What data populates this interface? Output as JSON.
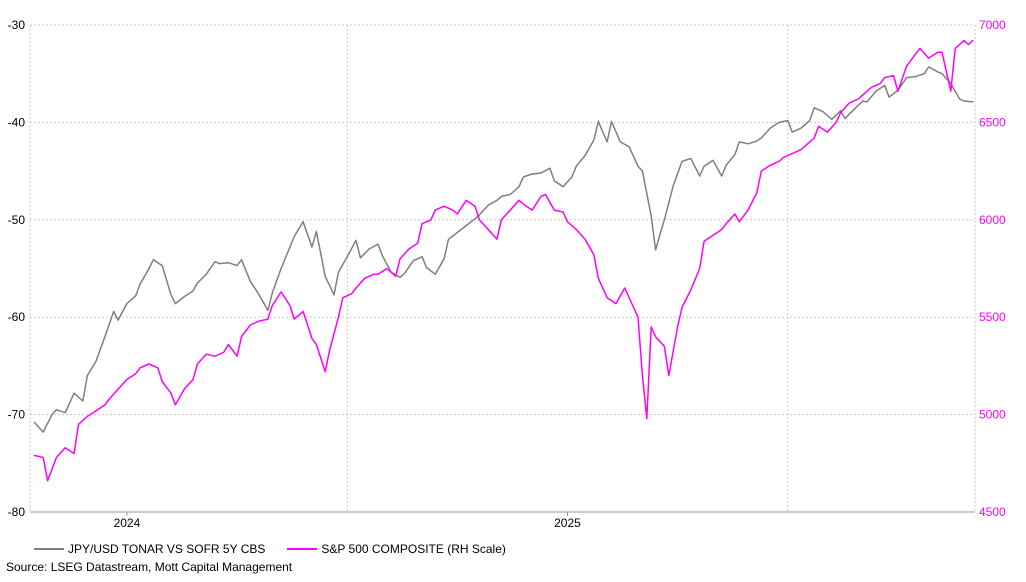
{
  "chart_data": {
    "type": "line",
    "title": "",
    "xlabel": "",
    "x_tick_labels": [
      "2024",
      "2025"
    ],
    "left_axis": {
      "ylim": [
        -80,
        -30
      ],
      "ticks": [
        -30,
        -40,
        -50,
        -60,
        -70,
        -80
      ]
    },
    "right_axis": {
      "ylim": [
        4500,
        7000
      ],
      "ticks": [
        7000,
        6500,
        6000,
        5500,
        5000,
        4500
      ]
    },
    "grid": true,
    "legend_position": "bottom-left",
    "series": [
      {
        "name": "JPY/USD TONAR VS SOFR 5Y CBS",
        "axis": "left",
        "color": "#7f7f7f",
        "points": [
          [
            2023.79,
            -70.8
          ],
          [
            2023.81,
            -71.8
          ],
          [
            2023.83,
            -70.0
          ],
          [
            2023.84,
            -69.5
          ],
          [
            2023.86,
            -69.8
          ],
          [
            2023.88,
            -67.8
          ],
          [
            2023.9,
            -68.6
          ],
          [
            2023.91,
            -66.0
          ],
          [
            2023.93,
            -64.5
          ],
          [
            2023.95,
            -62.0
          ],
          [
            2023.97,
            -59.4
          ],
          [
            2023.98,
            -60.3
          ],
          [
            2024.0,
            -58.6
          ],
          [
            2024.02,
            -57.8
          ],
          [
            2024.03,
            -56.6
          ],
          [
            2024.05,
            -55.0
          ],
          [
            2024.06,
            -54.1
          ],
          [
            2024.08,
            -54.7
          ],
          [
            2024.1,
            -57.7
          ],
          [
            2024.11,
            -58.6
          ],
          [
            2024.13,
            -57.9
          ],
          [
            2024.15,
            -57.3
          ],
          [
            2024.16,
            -56.5
          ],
          [
            2024.18,
            -55.6
          ],
          [
            2024.2,
            -54.3
          ],
          [
            2024.21,
            -54.5
          ],
          [
            2024.23,
            -54.4
          ],
          [
            2024.25,
            -54.7
          ],
          [
            2024.26,
            -54.1
          ],
          [
            2024.28,
            -56.3
          ],
          [
            2024.3,
            -57.7
          ],
          [
            2024.32,
            -59.3
          ],
          [
            2024.33,
            -57.5
          ],
          [
            2024.35,
            -55.0
          ],
          [
            2024.37,
            -52.8
          ],
          [
            2024.38,
            -51.7
          ],
          [
            2024.4,
            -50.2
          ],
          [
            2024.42,
            -52.8
          ],
          [
            2024.43,
            -51.2
          ],
          [
            2024.45,
            -55.8
          ],
          [
            2024.47,
            -57.7
          ],
          [
            2024.48,
            -55.4
          ],
          [
            2024.5,
            -53.8
          ],
          [
            2024.52,
            -52.1
          ],
          [
            2024.53,
            -53.9
          ],
          [
            2024.55,
            -53.0
          ],
          [
            2024.57,
            -52.5
          ],
          [
            2024.58,
            -53.7
          ],
          [
            2024.6,
            -55.4
          ],
          [
            2024.62,
            -55.9
          ],
          [
            2024.63,
            -55.5
          ],
          [
            2024.65,
            -54.2
          ],
          [
            2024.67,
            -53.8
          ],
          [
            2024.68,
            -54.9
          ],
          [
            2024.7,
            -55.6
          ],
          [
            2024.72,
            -54.0
          ],
          [
            2024.73,
            -52.0
          ],
          [
            2024.75,
            -51.3
          ],
          [
            2024.77,
            -50.6
          ],
          [
            2024.79,
            -49.9
          ],
          [
            2024.8,
            -49.5
          ],
          [
            2024.82,
            -48.5
          ],
          [
            2024.84,
            -48.0
          ],
          [
            2024.85,
            -47.6
          ],
          [
            2024.87,
            -47.4
          ],
          [
            2024.89,
            -46.6
          ],
          [
            2024.9,
            -45.6
          ],
          [
            2024.92,
            -45.3
          ],
          [
            2024.94,
            -45.2
          ],
          [
            2024.96,
            -44.7
          ],
          [
            2024.97,
            -46.0
          ],
          [
            2024.99,
            -46.6
          ],
          [
            2025.01,
            -45.6
          ],
          [
            2025.02,
            -44.5
          ],
          [
            2025.04,
            -43.4
          ],
          [
            2025.06,
            -41.8
          ],
          [
            2025.07,
            -39.9
          ],
          [
            2025.09,
            -42.0
          ],
          [
            2025.1,
            -39.9
          ],
          [
            2025.12,
            -42.0
          ],
          [
            2025.14,
            -42.5
          ],
          [
            2025.16,
            -44.5
          ],
          [
            2025.17,
            -45.0
          ],
          [
            2025.19,
            -49.6
          ],
          [
            2025.2,
            -53.1
          ],
          [
            2025.21,
            -51.5
          ],
          [
            2025.22,
            -50.0
          ],
          [
            2025.24,
            -46.5
          ],
          [
            2025.26,
            -44.0
          ],
          [
            2025.28,
            -43.7
          ],
          [
            2025.3,
            -45.5
          ],
          [
            2025.31,
            -44.5
          ],
          [
            2025.33,
            -43.9
          ],
          [
            2025.35,
            -45.5
          ],
          [
            2025.36,
            -44.4
          ],
          [
            2025.38,
            -43.3
          ],
          [
            2025.39,
            -42.0
          ],
          [
            2025.41,
            -42.2
          ],
          [
            2025.43,
            -41.9
          ],
          [
            2025.44,
            -41.6
          ],
          [
            2025.46,
            -40.6
          ],
          [
            2025.48,
            -40.0
          ],
          [
            2025.5,
            -39.8
          ],
          [
            2025.51,
            -41.0
          ],
          [
            2025.53,
            -40.6
          ],
          [
            2025.55,
            -39.8
          ],
          [
            2025.56,
            -38.5
          ],
          [
            2025.58,
            -38.9
          ],
          [
            2025.6,
            -39.7
          ],
          [
            2025.62,
            -38.8
          ],
          [
            2025.63,
            -39.6
          ],
          [
            2025.65,
            -38.7
          ],
          [
            2025.67,
            -37.8
          ],
          [
            2025.68,
            -37.9
          ],
          [
            2025.7,
            -36.8
          ],
          [
            2025.72,
            -36.2
          ],
          [
            2025.73,
            -37.4
          ],
          [
            2025.75,
            -36.7
          ],
          [
            2025.77,
            -35.4
          ],
          [
            2025.79,
            -35.3
          ],
          [
            2025.81,
            -35.0
          ],
          [
            2025.82,
            -34.3
          ],
          [
            2025.84,
            -34.8
          ],
          [
            2025.85,
            -35.0
          ],
          [
            2025.87,
            -36.0
          ],
          [
            2025.89,
            -37.6
          ],
          [
            2025.9,
            -37.8
          ],
          [
            2025.92,
            -37.9
          ]
        ]
      },
      {
        "name": "S&P 500 COMPOSITE (RH Scale)",
        "axis": "right",
        "color": "#ff00ff",
        "points": [
          [
            2023.79,
            4790
          ],
          [
            2023.81,
            4780
          ],
          [
            2023.82,
            4660
          ],
          [
            2023.84,
            4780
          ],
          [
            2023.86,
            4830
          ],
          [
            2023.88,
            4800
          ],
          [
            2023.89,
            4950
          ],
          [
            2023.91,
            4990
          ],
          [
            2023.93,
            5020
          ],
          [
            2023.95,
            5050
          ],
          [
            2023.96,
            5080
          ],
          [
            2023.98,
            5130
          ],
          [
            2024.0,
            5180
          ],
          [
            2024.02,
            5210
          ],
          [
            2024.03,
            5240
          ],
          [
            2024.05,
            5260
          ],
          [
            2024.07,
            5240
          ],
          [
            2024.08,
            5170
          ],
          [
            2024.1,
            5110
          ],
          [
            2024.11,
            5050
          ],
          [
            2024.13,
            5130
          ],
          [
            2024.15,
            5180
          ],
          [
            2024.16,
            5260
          ],
          [
            2024.18,
            5310
          ],
          [
            2024.2,
            5300
          ],
          [
            2024.22,
            5320
          ],
          [
            2024.23,
            5360
          ],
          [
            2024.25,
            5300
          ],
          [
            2024.26,
            5400
          ],
          [
            2024.28,
            5460
          ],
          [
            2024.3,
            5480
          ],
          [
            2024.32,
            5490
          ],
          [
            2024.33,
            5560
          ],
          [
            2024.35,
            5630
          ],
          [
            2024.37,
            5560
          ],
          [
            2024.38,
            5490
          ],
          [
            2024.4,
            5530
          ],
          [
            2024.42,
            5390
          ],
          [
            2024.43,
            5360
          ],
          [
            2024.45,
            5220
          ],
          [
            2024.46,
            5330
          ],
          [
            2024.48,
            5500
          ],
          [
            2024.49,
            5600
          ],
          [
            2024.51,
            5620
          ],
          [
            2024.52,
            5650
          ],
          [
            2024.54,
            5700
          ],
          [
            2024.56,
            5720
          ],
          [
            2024.57,
            5720
          ],
          [
            2024.59,
            5750
          ],
          [
            2024.61,
            5710
          ],
          [
            2024.62,
            5800
          ],
          [
            2024.64,
            5850
          ],
          [
            2024.66,
            5880
          ],
          [
            2024.67,
            5980
          ],
          [
            2024.69,
            6000
          ],
          [
            2024.7,
            6050
          ],
          [
            2024.72,
            6070
          ],
          [
            2024.74,
            6050
          ],
          [
            2024.75,
            6030
          ],
          [
            2024.77,
            6100
          ],
          [
            2024.79,
            6070
          ],
          [
            2024.8,
            6000
          ],
          [
            2024.82,
            5950
          ],
          [
            2024.84,
            5900
          ],
          [
            2024.85,
            6000
          ],
          [
            2024.87,
            6050
          ],
          [
            2024.89,
            6100
          ],
          [
            2024.9,
            6080
          ],
          [
            2024.92,
            6050
          ],
          [
            2024.94,
            6120
          ],
          [
            2024.95,
            6130
          ],
          [
            2024.97,
            6050
          ],
          [
            2024.99,
            6040
          ],
          [
            2025.0,
            5990
          ],
          [
            2025.02,
            5950
          ],
          [
            2025.04,
            5900
          ],
          [
            2025.06,
            5820
          ],
          [
            2025.07,
            5700
          ],
          [
            2025.09,
            5600
          ],
          [
            2025.11,
            5570
          ],
          [
            2025.13,
            5650
          ],
          [
            2025.15,
            5550
          ],
          [
            2025.16,
            5500
          ],
          [
            2025.17,
            5200
          ],
          [
            2025.18,
            4980
          ],
          [
            2025.19,
            5450
          ],
          [
            2025.2,
            5400
          ],
          [
            2025.22,
            5350
          ],
          [
            2025.23,
            5200
          ],
          [
            2025.25,
            5450
          ],
          [
            2025.26,
            5550
          ],
          [
            2025.28,
            5640
          ],
          [
            2025.3,
            5750
          ],
          [
            2025.31,
            5890
          ],
          [
            2025.33,
            5920
          ],
          [
            2025.35,
            5950
          ],
          [
            2025.36,
            5980
          ],
          [
            2025.38,
            6030
          ],
          [
            2025.39,
            5990
          ],
          [
            2025.41,
            6050
          ],
          [
            2025.43,
            6140
          ],
          [
            2025.44,
            6250
          ],
          [
            2025.46,
            6280
          ],
          [
            2025.48,
            6300
          ],
          [
            2025.49,
            6320
          ],
          [
            2025.51,
            6340
          ],
          [
            2025.53,
            6360
          ],
          [
            2025.54,
            6380
          ],
          [
            2025.56,
            6420
          ],
          [
            2025.57,
            6480
          ],
          [
            2025.59,
            6450
          ],
          [
            2025.61,
            6500
          ],
          [
            2025.62,
            6550
          ],
          [
            2025.64,
            6600
          ],
          [
            2025.66,
            6620
          ],
          [
            2025.67,
            6640
          ],
          [
            2025.69,
            6680
          ],
          [
            2025.71,
            6700
          ],
          [
            2025.72,
            6730
          ],
          [
            2025.74,
            6740
          ],
          [
            2025.75,
            6660
          ],
          [
            2025.77,
            6790
          ],
          [
            2025.79,
            6850
          ],
          [
            2025.8,
            6880
          ],
          [
            2025.82,
            6830
          ],
          [
            2025.84,
            6860
          ],
          [
            2025.85,
            6860
          ],
          [
            2025.87,
            6660
          ],
          [
            2025.88,
            6880
          ],
          [
            2025.89,
            6900
          ],
          [
            2025.9,
            6920
          ],
          [
            2025.91,
            6900
          ],
          [
            2025.92,
            6920
          ]
        ]
      }
    ],
    "x_range": [
      2023.78,
      2025.925
    ],
    "x_major_tick_years": [
      2024,
      2025
    ],
    "x_month_gridline_years": [
      2024.5,
      2025.5
    ]
  },
  "legend": {
    "items": [
      {
        "label": "JPY/USD TONAR VS SOFR 5Y CBS",
        "color": "#7f7f7f"
      },
      {
        "label": "S&P 500 COMPOSITE (RH Scale)",
        "color": "#ff00ff"
      }
    ]
  },
  "source_note": "Source: LSEG Datastream, Mott Capital Management",
  "colors": {
    "right_axis_text": "#ff00ff",
    "grid": "#c8c8c8"
  }
}
